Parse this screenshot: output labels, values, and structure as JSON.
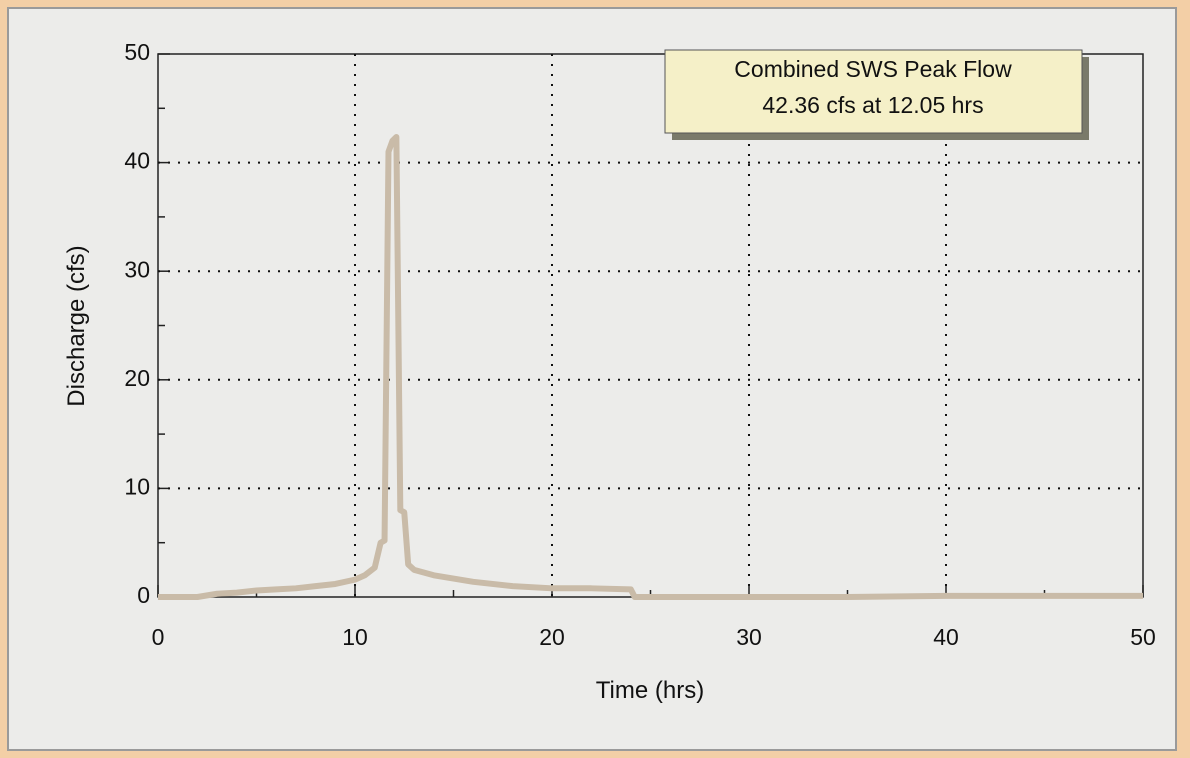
{
  "chart_data": {
    "type": "line",
    "annotation": [
      "Combined SWS Peak Flow",
      "42.36 cfs at 12.05 hrs"
    ],
    "x_label": "Time (hrs)",
    "y_label": "Discharge (cfs)",
    "x": [
      0,
      1,
      2,
      3,
      4,
      5,
      6,
      7,
      8,
      9,
      10,
      10.5,
      11,
      11.3,
      11.5,
      11.7,
      11.9,
      12.1,
      12.3,
      12.5,
      12.7,
      13,
      14,
      15,
      16,
      18,
      20,
      22,
      24,
      24.2,
      26,
      30,
      35,
      40,
      45,
      50
    ],
    "series": [
      {
        "color": "#c9bba8",
        "values": [
          0,
          0,
          0,
          0.3,
          0.4,
          0.6,
          0.7,
          0.8,
          1,
          1.2,
          1.6,
          2,
          2.7,
          5,
          5.2,
          41,
          42,
          42.36,
          8,
          7.8,
          3,
          2.5,
          2,
          1.7,
          1.4,
          1,
          0.8,
          0.8,
          0.7,
          0,
          0,
          0,
          0,
          0.1,
          0.1,
          0.1
        ]
      }
    ],
    "xlim": [
      0,
      50
    ],
    "xticks": [
      0,
      10,
      20,
      30,
      40,
      50
    ],
    "xminorticks": [
      5,
      15,
      25,
      35,
      45
    ],
    "ylim": [
      0,
      50
    ],
    "yticks": [
      0,
      10,
      20,
      30,
      40,
      50
    ],
    "yminorticks": [
      5,
      15,
      25,
      35,
      45
    ],
    "grid": true
  }
}
